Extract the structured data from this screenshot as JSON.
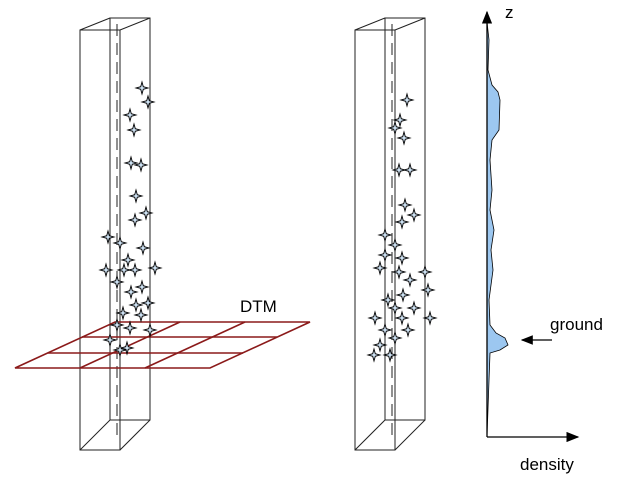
{
  "labels": {
    "dtm": "DTM",
    "z_axis": "z",
    "ground": "ground",
    "density": "density"
  }
}
